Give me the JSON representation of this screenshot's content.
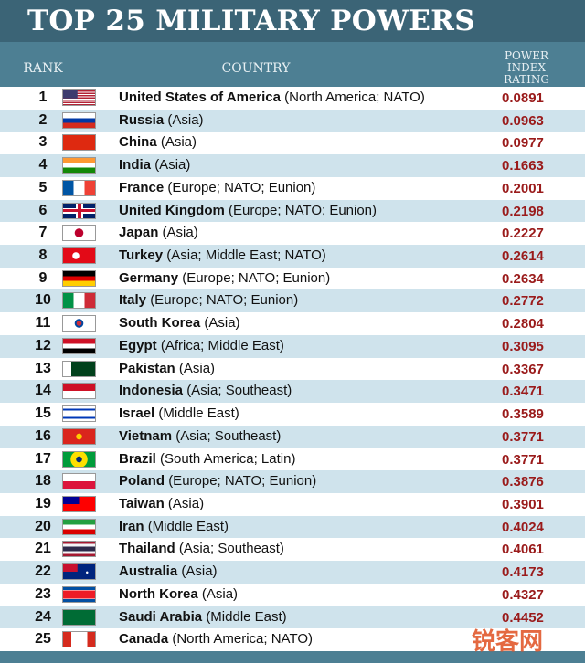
{
  "header": {
    "title": "TOP 25 MILITARY POWERS",
    "rank_label": "RANK",
    "country_label": "COUNTRY",
    "rating_label": "POWER INDEX RATING"
  },
  "table": {
    "rows": [
      {
        "rank": "1",
        "country": "United States of America",
        "region": "(North America; NATO)",
        "rating": "0.0891"
      },
      {
        "rank": "2",
        "country": "Russia",
        "region": "(Asia)",
        "rating": "0.0963"
      },
      {
        "rank": "3",
        "country": "China",
        "region": "(Asia)",
        "rating": "0.0977"
      },
      {
        "rank": "4",
        "country": "India",
        "region": "(Asia)",
        "rating": "0.1663"
      },
      {
        "rank": "5",
        "country": "France",
        "region": "(Europe; NATO; Eunion)",
        "rating": "0.2001"
      },
      {
        "rank": "6",
        "country": "United Kingdom",
        "region": "(Europe; NATO; Eunion)",
        "rating": "0.2198"
      },
      {
        "rank": "7",
        "country": "Japan",
        "region": "(Asia)",
        "rating": "0.2227"
      },
      {
        "rank": "8",
        "country": "Turkey",
        "region": "(Asia; Middle East; NATO)",
        "rating": "0.2614"
      },
      {
        "rank": "9",
        "country": "Germany",
        "region": "(Europe; NATO; Eunion)",
        "rating": "0.2634"
      },
      {
        "rank": "10",
        "country": "Italy",
        "region": "(Europe; NATO; Eunion)",
        "rating": "0.2772"
      },
      {
        "rank": "11",
        "country": "South Korea",
        "region": "(Asia)",
        "rating": "0.2804"
      },
      {
        "rank": "12",
        "country": "Egypt",
        "region": "(Africa; Middle East)",
        "rating": "0.3095"
      },
      {
        "rank": "13",
        "country": "Pakistan",
        "region": "(Asia)",
        "rating": "0.3367"
      },
      {
        "rank": "14",
        "country": "Indonesia",
        "region": "(Asia; Southeast)",
        "rating": "0.3471"
      },
      {
        "rank": "15",
        "country": "Israel",
        "region": "(Middle East)",
        "rating": "0.3589"
      },
      {
        "rank": "16",
        "country": "Vietnam",
        "region": "(Asia; Southeast)",
        "rating": "0.3771"
      },
      {
        "rank": "17",
        "country": "Brazil",
        "region": "(South America; Latin)",
        "rating": "0.3771"
      },
      {
        "rank": "18",
        "country": "Poland",
        "region": "(Europe; NATO; Eunion)",
        "rating": "0.3876"
      },
      {
        "rank": "19",
        "country": "Taiwan",
        "region": "(Asia)",
        "rating": "0.3901"
      },
      {
        "rank": "20",
        "country": "Iran",
        "region": "(Middle East)",
        "rating": "0.4024"
      },
      {
        "rank": "21",
        "country": "Thailand",
        "region": "(Asia; Southeast)",
        "rating": "0.4061"
      },
      {
        "rank": "22",
        "country": "Australia",
        "region": "(Asia)",
        "rating": "0.4173"
      },
      {
        "rank": "23",
        "country": "North Korea",
        "region": "(Asia)",
        "rating": "0.4327"
      },
      {
        "rank": "24",
        "country": "Saudi Arabia",
        "region": "(Middle East)",
        "rating": "0.4452"
      },
      {
        "rank": "25",
        "country": "Canada",
        "region": "(North America; NATO)"
      }
    ]
  },
  "watermark": "锐客网"
}
